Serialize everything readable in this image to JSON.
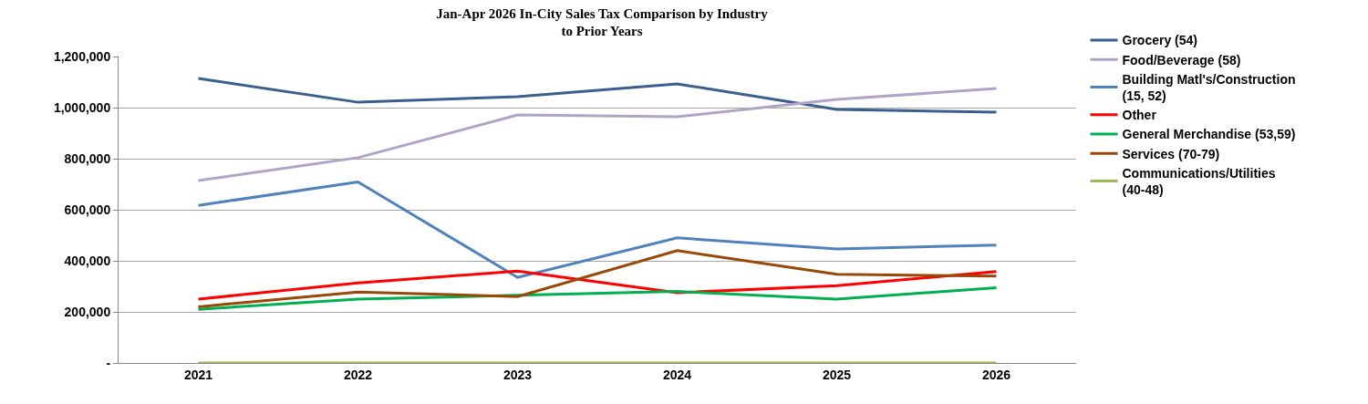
{
  "chart_data": {
    "type": "line",
    "title": "Jan-Apr 2026 In-City Sales Tax Comparison by Industry\nto Prior Years",
    "categories": [
      "2021",
      "2022",
      "2023",
      "2024",
      "2025",
      "2026"
    ],
    "series": [
      {
        "name": "Grocery (54)",
        "color": "#3a5f8f",
        "values": [
          1114000,
          1021000,
          1043000,
          1093000,
          993000,
          982000
        ]
      },
      {
        "name": "Food/Beverage (58)",
        "color": "#b3a2c7",
        "values": [
          714000,
          804000,
          971000,
          964000,
          1032000,
          1075000
        ]
      },
      {
        "name": "Building Matl's/Construction (15, 52)",
        "color": "#4f81bd",
        "values": [
          617000,
          709000,
          335000,
          490000,
          446000,
          462000
        ]
      },
      {
        "name": "Other",
        "color": "#ff0000",
        "values": [
          250000,
          313000,
          360000,
          275000,
          303000,
          358000
        ]
      },
      {
        "name": "General Merchandise (53,59)",
        "color": "#00b050",
        "values": [
          210000,
          250000,
          265000,
          280000,
          250000,
          295000
        ]
      },
      {
        "name": "Services (70-79)",
        "color": "#984807",
        "values": [
          220000,
          278000,
          260000,
          440000,
          347000,
          340000
        ]
      },
      {
        "name": "Communications/Utilities (40-48)",
        "color": "#9bbb59",
        "values": [
          0,
          0,
          0,
          0,
          0,
          0
        ]
      }
    ],
    "ylim": [
      0,
      1200000
    ],
    "yticks": [
      {
        "value": 0,
        "label": "-"
      },
      {
        "value": 200000,
        "label": "200,000"
      },
      {
        "value": 400000,
        "label": "400,000"
      },
      {
        "value": 600000,
        "label": "600,000"
      },
      {
        "value": 800000,
        "label": "800,000"
      },
      {
        "value": 1000000,
        "label": "1,000,000"
      },
      {
        "value": 1200000,
        "label": "1,200,000"
      }
    ],
    "grid": "y",
    "legend": "right",
    "marker": "none",
    "line_style": "solid"
  }
}
